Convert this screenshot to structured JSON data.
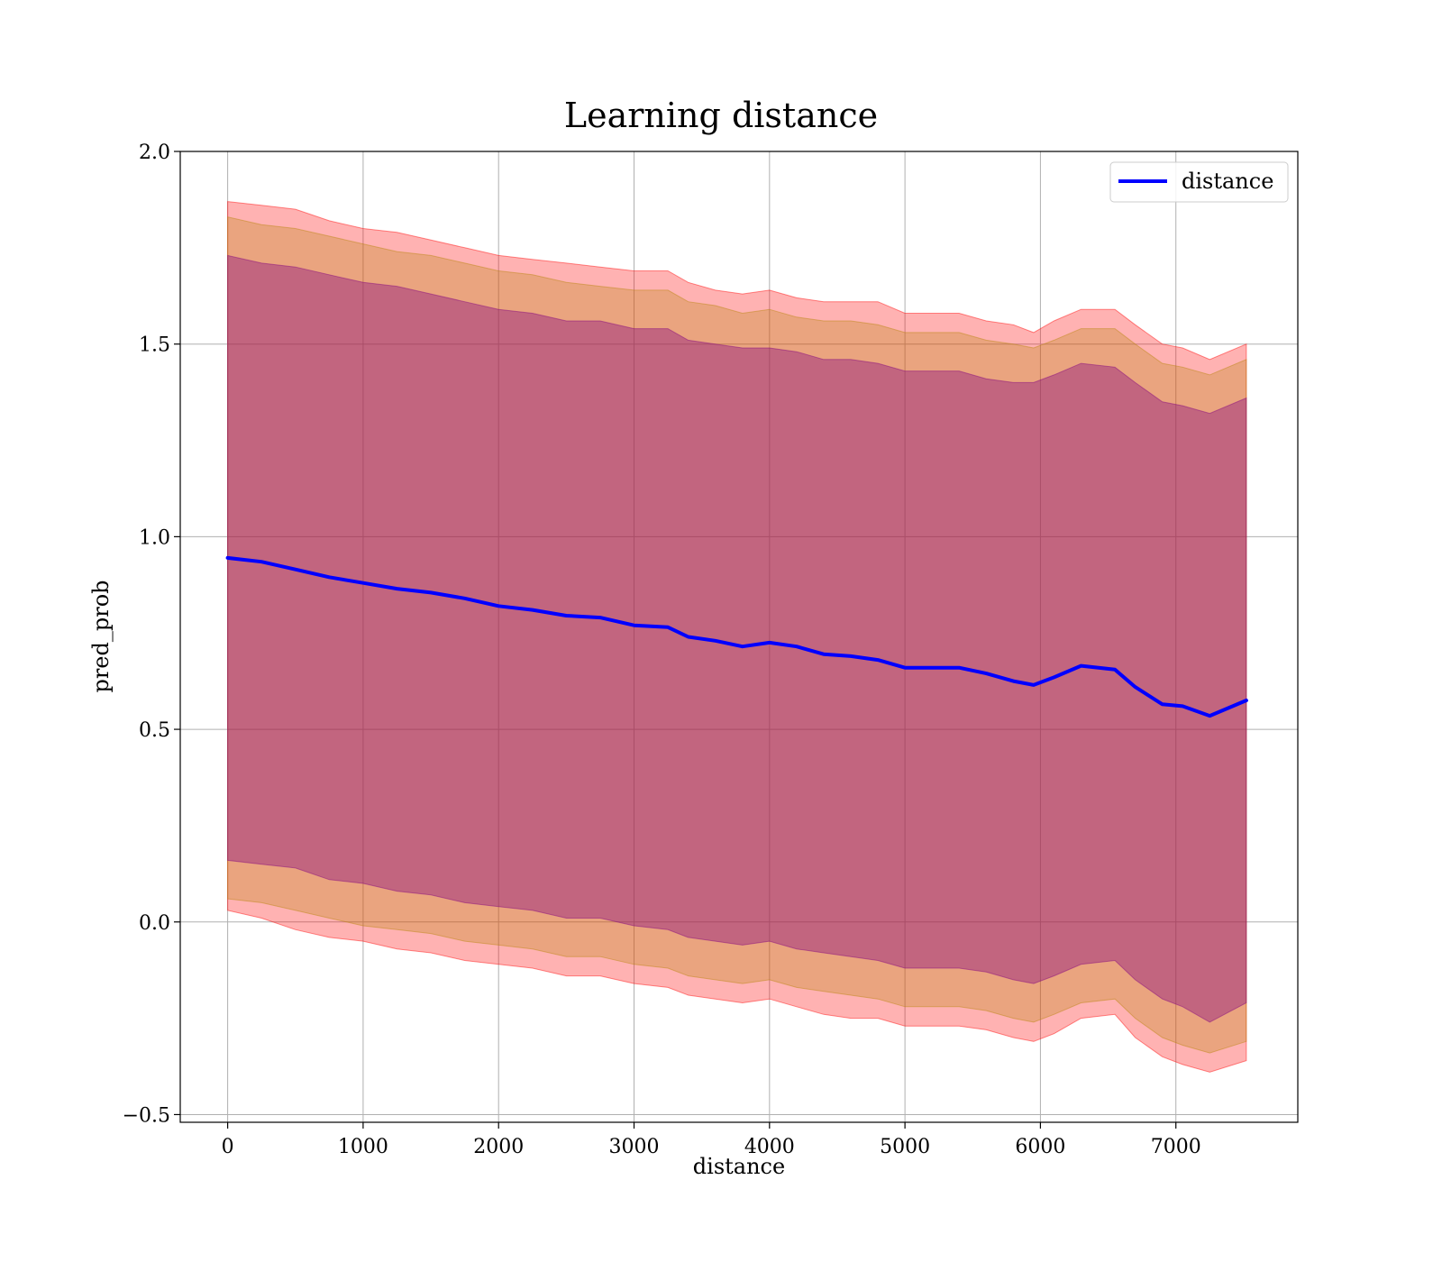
{
  "chart_data": {
    "type": "line",
    "title": "Learning distance",
    "xlabel": "distance",
    "ylabel": "pred_prob",
    "xlim": [
      -350,
      7900
    ],
    "ylim": [
      -0.52,
      2.0
    ],
    "xticks": [
      0,
      1000,
      2000,
      3000,
      4000,
      5000,
      6000,
      7000
    ],
    "xtick_labels": [
      "0",
      "1000",
      "2000",
      "3000",
      "4000",
      "5000",
      "6000",
      "7000"
    ],
    "yticks": [
      -0.5,
      0.0,
      0.5,
      1.0,
      1.5,
      2.0
    ],
    "ytick_labels": [
      "−0.5",
      "0.0",
      "0.5",
      "1.0",
      "1.5",
      "2.0"
    ],
    "grid": true,
    "legend": {
      "placement": "upper right",
      "entries": [
        "distance"
      ]
    },
    "colors": {
      "line": "#0000ff",
      "band_outer": "#ff0000",
      "band_middle": "#b8860b",
      "band_inner": "#800080"
    },
    "series": [
      {
        "name": "distance",
        "x": [
          0,
          250,
          500,
          750,
          1000,
          1250,
          1500,
          1750,
          2000,
          2250,
          2500,
          2750,
          3000,
          3250,
          3400,
          3600,
          3800,
          4000,
          4200,
          4400,
          4600,
          4800,
          5000,
          5200,
          5400,
          5600,
          5800,
          5950,
          6100,
          6300,
          6550,
          6700,
          6900,
          7050,
          7250,
          7520
        ],
        "y": [
          0.945,
          0.935,
          0.915,
          0.895,
          0.88,
          0.865,
          0.855,
          0.84,
          0.82,
          0.81,
          0.795,
          0.79,
          0.77,
          0.765,
          0.74,
          0.73,
          0.715,
          0.725,
          0.715,
          0.695,
          0.69,
          0.68,
          0.66,
          0.66,
          0.66,
          0.645,
          0.625,
          0.615,
          0.635,
          0.665,
          0.655,
          0.61,
          0.565,
          0.56,
          0.535,
          0.575
        ]
      }
    ],
    "bands": [
      {
        "level": "outer",
        "upper": [
          1.87,
          1.86,
          1.85,
          1.82,
          1.8,
          1.79,
          1.77,
          1.75,
          1.73,
          1.72,
          1.71,
          1.7,
          1.69,
          1.69,
          1.66,
          1.64,
          1.63,
          1.64,
          1.62,
          1.61,
          1.61,
          1.61,
          1.58,
          1.58,
          1.58,
          1.56,
          1.55,
          1.53,
          1.56,
          1.59,
          1.59,
          1.55,
          1.5,
          1.49,
          1.46,
          1.5
        ],
        "lower": [
          0.03,
          0.01,
          -0.02,
          -0.04,
          -0.05,
          -0.07,
          -0.08,
          -0.1,
          -0.11,
          -0.12,
          -0.14,
          -0.14,
          -0.16,
          -0.17,
          -0.19,
          -0.2,
          -0.21,
          -0.2,
          -0.22,
          -0.24,
          -0.25,
          -0.25,
          -0.27,
          -0.27,
          -0.27,
          -0.28,
          -0.3,
          -0.31,
          -0.29,
          -0.25,
          -0.24,
          -0.3,
          -0.35,
          -0.37,
          -0.39,
          -0.36
        ]
      },
      {
        "level": "middle",
        "upper": [
          1.83,
          1.81,
          1.8,
          1.78,
          1.76,
          1.74,
          1.73,
          1.71,
          1.69,
          1.68,
          1.66,
          1.65,
          1.64,
          1.64,
          1.61,
          1.6,
          1.58,
          1.59,
          1.57,
          1.56,
          1.56,
          1.55,
          1.53,
          1.53,
          1.53,
          1.51,
          1.5,
          1.49,
          1.51,
          1.54,
          1.54,
          1.5,
          1.45,
          1.44,
          1.42,
          1.46
        ],
        "lower": [
          0.06,
          0.05,
          0.03,
          0.01,
          -0.01,
          -0.02,
          -0.03,
          -0.05,
          -0.06,
          -0.07,
          -0.09,
          -0.09,
          -0.11,
          -0.12,
          -0.14,
          -0.15,
          -0.16,
          -0.15,
          -0.17,
          -0.18,
          -0.19,
          -0.2,
          -0.22,
          -0.22,
          -0.22,
          -0.23,
          -0.25,
          -0.26,
          -0.24,
          -0.21,
          -0.2,
          -0.25,
          -0.3,
          -0.32,
          -0.34,
          -0.31
        ]
      },
      {
        "level": "inner",
        "upper": [
          1.73,
          1.71,
          1.7,
          1.68,
          1.66,
          1.65,
          1.63,
          1.61,
          1.59,
          1.58,
          1.56,
          1.56,
          1.54,
          1.54,
          1.51,
          1.5,
          1.49,
          1.49,
          1.48,
          1.46,
          1.46,
          1.45,
          1.43,
          1.43,
          1.43,
          1.41,
          1.4,
          1.4,
          1.42,
          1.45,
          1.44,
          1.4,
          1.35,
          1.34,
          1.32,
          1.36
        ],
        "lower": [
          0.16,
          0.15,
          0.14,
          0.11,
          0.1,
          0.08,
          0.07,
          0.05,
          0.04,
          0.03,
          0.01,
          0.01,
          -0.01,
          -0.02,
          -0.04,
          -0.05,
          -0.06,
          -0.05,
          -0.07,
          -0.08,
          -0.09,
          -0.1,
          -0.12,
          -0.12,
          -0.12,
          -0.13,
          -0.15,
          -0.16,
          -0.14,
          -0.11,
          -0.1,
          -0.15,
          -0.2,
          -0.22,
          -0.26,
          -0.21
        ]
      }
    ]
  }
}
